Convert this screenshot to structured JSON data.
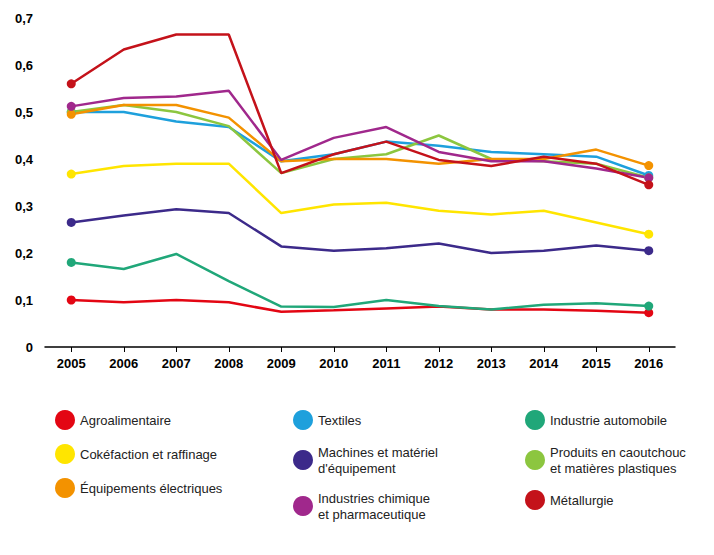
{
  "chart_data": {
    "type": "line",
    "categories": [
      "2005",
      "2006",
      "2007",
      "2008",
      "2009",
      "2010",
      "2011",
      "2012",
      "2013",
      "2014",
      "2015",
      "2016"
    ],
    "ylim": [
      0,
      0.7
    ],
    "yticks": [
      0,
      {
        "value": 0.1,
        "label": "0,1"
      },
      {
        "value": 0.2,
        "label": "0,2"
      },
      {
        "value": 0.3,
        "label": "0,3"
      },
      {
        "value": 0.4,
        "label": "0,4"
      },
      {
        "value": 0.5,
        "label": "0,5"
      },
      {
        "value": 0.6,
        "label": "0,6"
      },
      {
        "value": 0.7,
        "label": "0,7"
      }
    ],
    "grid": false,
    "legend": "bottom",
    "series": [
      {
        "name": "Agroalimentaire",
        "color": "#e30613",
        "values": [
          0.1,
          0.095,
          0.1,
          0.095,
          0.075,
          0.078,
          0.082,
          0.086,
          0.08,
          0.08,
          0.077,
          0.073
        ]
      },
      {
        "name": "Textiles",
        "color": "#1ea0dc",
        "values": [
          0.5,
          0.5,
          0.48,
          0.468,
          0.395,
          0.41,
          0.437,
          0.428,
          0.415,
          0.41,
          0.405,
          0.365
        ]
      },
      {
        "name": "Industrie automobile",
        "color": "#20a779",
        "values": [
          0.18,
          0.166,
          0.198,
          0.14,
          0.086,
          0.085,
          0.1,
          0.087,
          0.08,
          0.09,
          0.093,
          0.087
        ]
      },
      {
        "name": "Cokéfaction et raffinage",
        "color": "#ffe500",
        "values": [
          0.368,
          0.385,
          0.39,
          0.39,
          0.285,
          0.303,
          0.307,
          0.29,
          0.282,
          0.29,
          0.265,
          0.24
        ]
      },
      {
        "name": "Machines et matériel\nd'équipement",
        "color": "#3c2a8a",
        "values": [
          0.265,
          0.28,
          0.293,
          0.285,
          0.214,
          0.205,
          0.21,
          0.22,
          0.2,
          0.205,
          0.216,
          0.205
        ]
      },
      {
        "name": "Produits en caoutchouc\net matières plastiques",
        "color": "#8cc63f",
        "values": [
          0.5,
          0.515,
          0.5,
          0.47,
          0.37,
          0.4,
          0.41,
          0.45,
          0.4,
          0.395,
          0.39,
          0.36
        ]
      },
      {
        "name": "Équipements électriques",
        "color": "#f39200",
        "values": [
          0.495,
          0.515,
          0.515,
          0.488,
          0.395,
          0.4,
          0.4,
          0.39,
          0.4,
          0.4,
          0.42,
          0.386
        ]
      },
      {
        "name": "Industries chimique\net pharmaceutique",
        "color": "#a0288c",
        "values": [
          0.512,
          0.53,
          0.533,
          0.545,
          0.398,
          0.445,
          0.468,
          0.415,
          0.395,
          0.395,
          0.38,
          0.36
        ]
      },
      {
        "name": "Métallurgie",
        "color": "#c4121a",
        "values": [
          0.56,
          0.633,
          0.665,
          0.665,
          0.37,
          0.41,
          0.437,
          0.398,
          0.385,
          0.405,
          0.39,
          0.345
        ]
      }
    ]
  }
}
